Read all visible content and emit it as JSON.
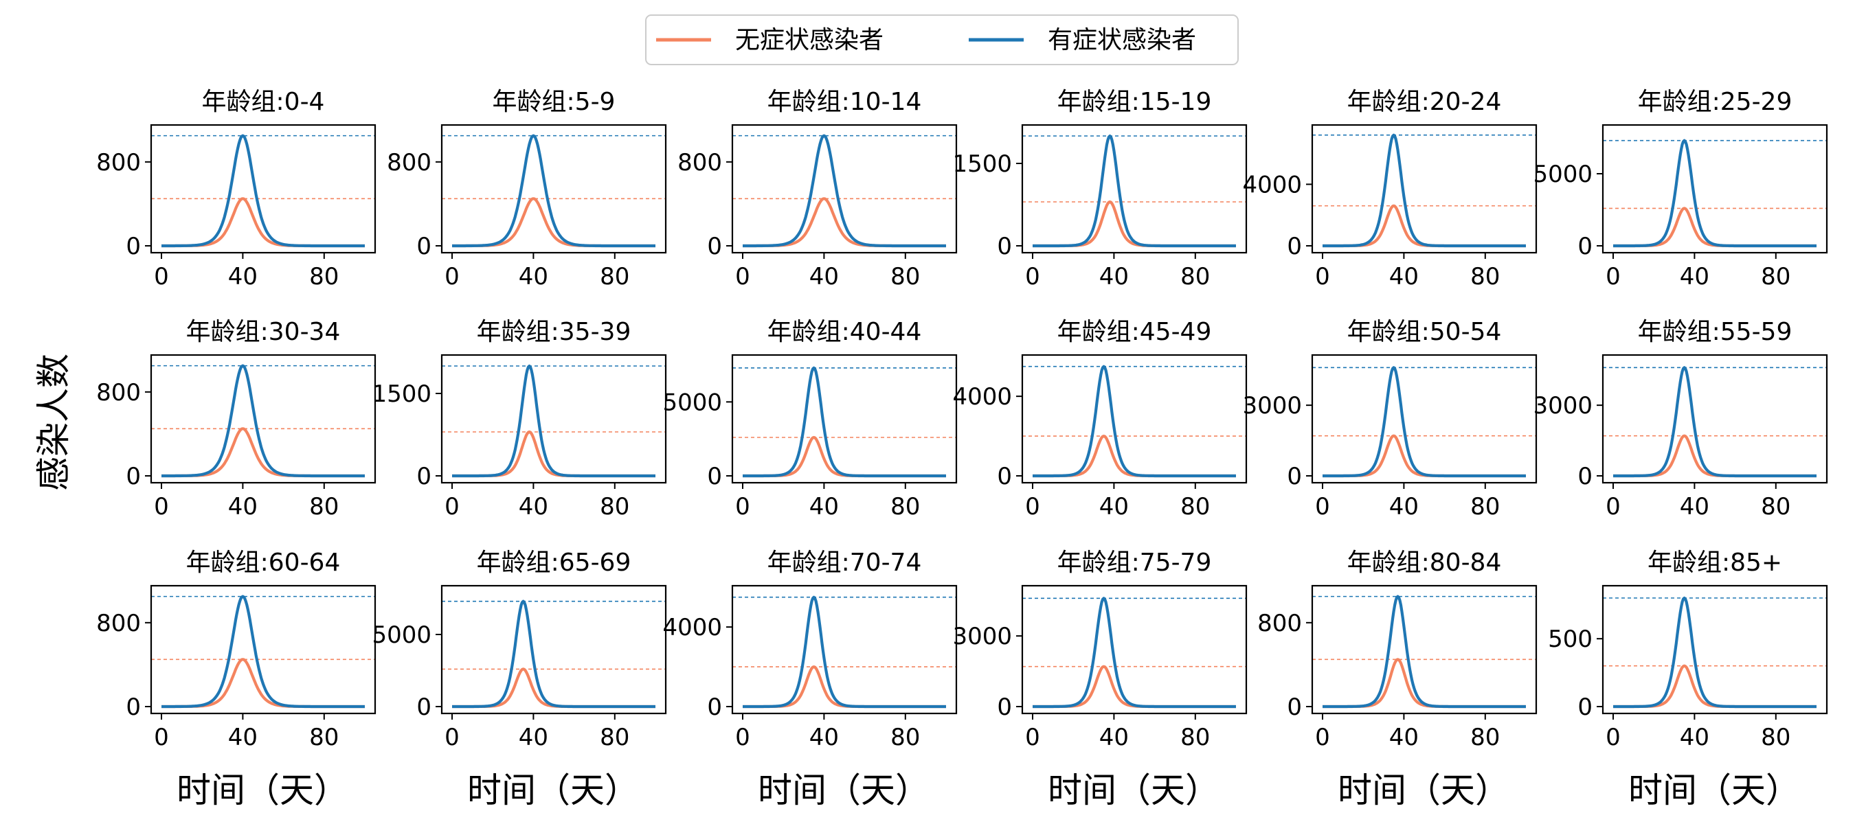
{
  "legend": {
    "items": [
      {
        "label": "无症状感染者",
        "color": "#F4845F"
      },
      {
        "label": "有症状感染者",
        "color": "#1F77B4"
      }
    ],
    "placement": "top-center"
  },
  "ylabel": "感染人数",
  "xlabel": "时间（天）",
  "chart_data": [
    {
      "type": "line",
      "title": "年龄组:0-4",
      "xlim": [
        0,
        100
      ],
      "ylim": [
        0,
        1100
      ],
      "yticks": [
        0,
        800
      ],
      "xticks": [
        0,
        40,
        80
      ],
      "peak_day": 40,
      "series": [
        {
          "name": "无症状感染者",
          "peak": 450,
          "color": "#F4845F"
        },
        {
          "name": "有症状感染者",
          "peak": 1050,
          "color": "#1F77B4"
        }
      ]
    },
    {
      "type": "line",
      "title": "年龄组:5-9",
      "xlim": [
        0,
        100
      ],
      "ylim": [
        0,
        1100
      ],
      "yticks": [
        0,
        800
      ],
      "xticks": [
        0,
        40,
        80
      ],
      "peak_day": 40,
      "series": [
        {
          "name": "无症状感染者",
          "peak": 450,
          "color": "#F4845F"
        },
        {
          "name": "有症状感染者",
          "peak": 1050,
          "color": "#1F77B4"
        }
      ]
    },
    {
      "type": "line",
      "title": "年龄组:10-14",
      "xlim": [
        0,
        100
      ],
      "ylim": [
        0,
        1100
      ],
      "yticks": [
        0,
        800
      ],
      "xticks": [
        0,
        40,
        80
      ],
      "peak_day": 40,
      "series": [
        {
          "name": "无症状感染者",
          "peak": 450,
          "color": "#F4845F"
        },
        {
          "name": "有症状感染者",
          "peak": 1050,
          "color": "#1F77B4"
        }
      ]
    },
    {
      "type": "line",
      "title": "年龄组:15-19",
      "xlim": [
        0,
        100
      ],
      "ylim": [
        0,
        2100
      ],
      "yticks": [
        0,
        1500
      ],
      "xticks": [
        0,
        40,
        80
      ],
      "peak_day": 38,
      "series": [
        {
          "name": "无症状感染者",
          "peak": 800,
          "color": "#F4845F"
        },
        {
          "name": "有症状感染者",
          "peak": 2000,
          "color": "#1F77B4"
        }
      ]
    },
    {
      "type": "line",
      "title": "年龄组:20-24",
      "xlim": [
        0,
        100
      ],
      "ylim": [
        0,
        7500
      ],
      "yticks": [
        0,
        4000
      ],
      "xticks": [
        0,
        40,
        80
      ],
      "peak_day": 35,
      "series": [
        {
          "name": "无症状感染者",
          "peak": 2600,
          "color": "#F4845F"
        },
        {
          "name": "有症状感染者",
          "peak": 7200,
          "color": "#1F77B4"
        }
      ]
    },
    {
      "type": "line",
      "title": "年龄组:25-29",
      "xlim": [
        0,
        100
      ],
      "ylim": [
        0,
        8000
      ],
      "yticks": [
        0,
        5000
      ],
      "xticks": [
        0,
        40,
        80
      ],
      "peak_day": 35,
      "series": [
        {
          "name": "无症状感染者",
          "peak": 2600,
          "color": "#F4845F"
        },
        {
          "name": "有症状感染者",
          "peak": 7300,
          "color": "#1F77B4"
        }
      ]
    },
    {
      "type": "line",
      "title": "年龄组:30-34",
      "xlim": [
        0,
        100
      ],
      "ylim": [
        0,
        1100
      ],
      "yticks": [
        0,
        800
      ],
      "xticks": [
        0,
        40,
        80
      ],
      "peak_day": 40,
      "series": [
        {
          "name": "无症状感染者",
          "peak": 450,
          "color": "#F4845F"
        },
        {
          "name": "有症状感染者",
          "peak": 1050,
          "color": "#1F77B4"
        }
      ]
    },
    {
      "type": "line",
      "title": "年龄组:35-39",
      "xlim": [
        0,
        100
      ],
      "ylim": [
        0,
        2100
      ],
      "yticks": [
        0,
        1500
      ],
      "xticks": [
        0,
        40,
        80
      ],
      "peak_day": 38,
      "series": [
        {
          "name": "无症状感染者",
          "peak": 800,
          "color": "#F4845F"
        },
        {
          "name": "有症状感染者",
          "peak": 2000,
          "color": "#1F77B4"
        }
      ]
    },
    {
      "type": "line",
      "title": "年龄组:40-44",
      "xlim": [
        0,
        100
      ],
      "ylim": [
        0,
        7800
      ],
      "yticks": [
        0,
        5000
      ],
      "xticks": [
        0,
        40,
        80
      ],
      "peak_day": 35,
      "series": [
        {
          "name": "无症状感染者",
          "peak": 2600,
          "color": "#F4845F"
        },
        {
          "name": "有症状感染者",
          "peak": 7300,
          "color": "#1F77B4"
        }
      ]
    },
    {
      "type": "line",
      "title": "年龄组:45-49",
      "xlim": [
        0,
        100
      ],
      "ylim": [
        0,
        5800
      ],
      "yticks": [
        0,
        4000
      ],
      "xticks": [
        0,
        40,
        80
      ],
      "peak_day": 35,
      "series": [
        {
          "name": "无症状感染者",
          "peak": 2000,
          "color": "#F4845F"
        },
        {
          "name": "有症状感染者",
          "peak": 5500,
          "color": "#1F77B4"
        }
      ]
    },
    {
      "type": "line",
      "title": "年龄组:50-54",
      "xlim": [
        0,
        100
      ],
      "ylim": [
        0,
        4900
      ],
      "yticks": [
        0,
        3000
      ],
      "xticks": [
        0,
        40,
        80
      ],
      "peak_day": 35,
      "series": [
        {
          "name": "无症状感染者",
          "peak": 1700,
          "color": "#F4845F"
        },
        {
          "name": "有症状感染者",
          "peak": 4600,
          "color": "#1F77B4"
        }
      ]
    },
    {
      "type": "line",
      "title": "年龄组:55-59",
      "xlim": [
        0,
        100
      ],
      "ylim": [
        0,
        4900
      ],
      "yticks": [
        0,
        3000
      ],
      "xticks": [
        0,
        40,
        80
      ],
      "peak_day": 35,
      "series": [
        {
          "name": "无症状感染者",
          "peak": 1700,
          "color": "#F4845F"
        },
        {
          "name": "有症状感染者",
          "peak": 4600,
          "color": "#1F77B4"
        }
      ]
    },
    {
      "type": "line",
      "title": "年龄组:60-64",
      "xlim": [
        0,
        100
      ],
      "ylim": [
        0,
        1100
      ],
      "yticks": [
        0,
        800
      ],
      "xticks": [
        0,
        40,
        80
      ],
      "peak_day": 40,
      "series": [
        {
          "name": "无症状感染者",
          "peak": 450,
          "color": "#F4845F"
        },
        {
          "name": "有症状感染者",
          "peak": 1050,
          "color": "#1F77B4"
        }
      ]
    },
    {
      "type": "line",
      "title": "年龄组:65-69",
      "xlim": [
        0,
        100
      ],
      "ylim": [
        0,
        8000
      ],
      "yticks": [
        0,
        5000
      ],
      "xticks": [
        0,
        40,
        80
      ],
      "peak_day": 35,
      "series": [
        {
          "name": "无症状感染者",
          "peak": 2600,
          "color": "#F4845F"
        },
        {
          "name": "有症状感染者",
          "peak": 7300,
          "color": "#1F77B4"
        }
      ]
    },
    {
      "type": "line",
      "title": "年龄组:70-74",
      "xlim": [
        0,
        100
      ],
      "ylim": [
        0,
        5800
      ],
      "yticks": [
        0,
        4000
      ],
      "xticks": [
        0,
        40,
        80
      ],
      "peak_day": 35,
      "series": [
        {
          "name": "无症状感染者",
          "peak": 2000,
          "color": "#F4845F"
        },
        {
          "name": "有症状感染者",
          "peak": 5500,
          "color": "#1F77B4"
        }
      ]
    },
    {
      "type": "line",
      "title": "年龄组:75-79",
      "xlim": [
        0,
        100
      ],
      "ylim": [
        0,
        4900
      ],
      "yticks": [
        0,
        3000
      ],
      "xticks": [
        0,
        40,
        80
      ],
      "peak_day": 35,
      "series": [
        {
          "name": "无症状感染者",
          "peak": 1700,
          "color": "#F4845F"
        },
        {
          "name": "有症状感染者",
          "peak": 4600,
          "color": "#1F77B4"
        }
      ]
    },
    {
      "type": "line",
      "title": "年龄组:80-84",
      "xlim": [
        0,
        100
      ],
      "ylim": [
        0,
        1100
      ],
      "yticks": [
        0,
        800
      ],
      "xticks": [
        0,
        40,
        80
      ],
      "peak_day": 37,
      "series": [
        {
          "name": "无症状感染者",
          "peak": 450,
          "color": "#F4845F"
        },
        {
          "name": "有症状感染者",
          "peak": 1050,
          "color": "#1F77B4"
        }
      ]
    },
    {
      "type": "line",
      "title": "年龄组:85+",
      "xlim": [
        0,
        100
      ],
      "ylim": [
        0,
        850
      ],
      "yticks": [
        0,
        500
      ],
      "xticks": [
        0,
        40,
        80
      ],
      "peak_day": 35,
      "series": [
        {
          "name": "无症状感染者",
          "peak": 300,
          "color": "#F4845F"
        },
        {
          "name": "有症状感染者",
          "peak": 800,
          "color": "#1F77B4"
        }
      ]
    }
  ]
}
